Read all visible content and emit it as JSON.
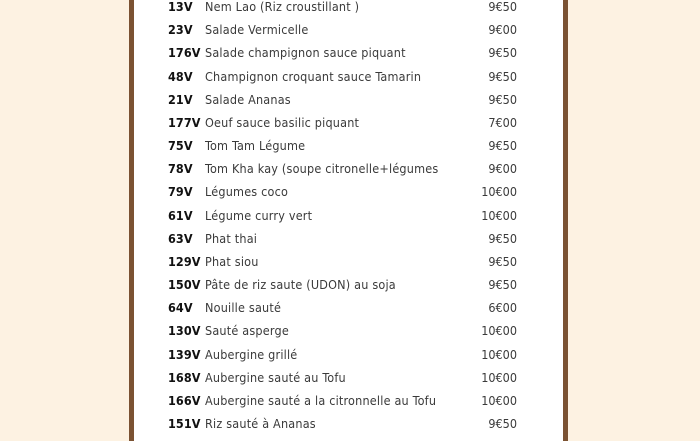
{
  "colors": {
    "background": "#fdf2e2",
    "border": "#7b5232",
    "panel": "#ffffff"
  },
  "menu": {
    "items": [
      {
        "code": "13V",
        "name": "Nem Lao (Riz croustillant )",
        "price": "9€50"
      },
      {
        "code": "23V",
        "name": "Salade  Vermicelle",
        "price": "9€00"
      },
      {
        "code": "176V",
        "name": "Salade champignon sauce piquant",
        "price": "9€50"
      },
      {
        "code": "48V",
        "name": "Champignon croquant sauce Tamarin",
        "price": "9€50"
      },
      {
        "code": "21V",
        "name": "Salade Ananas",
        "price": "9€50"
      },
      {
        "code": "177V",
        "name": "Oeuf sauce basilic piquant",
        "price": "7€00"
      },
      {
        "code": "75V",
        "name": "Tom Tam Légume",
        "price": "9€50"
      },
      {
        "code": "78V",
        "name": "Tom Kha kay (soupe citronelle+légumes",
        "price": "9€00"
      },
      {
        "code": "79V",
        "name": "Légumes coco",
        "price": "10€00"
      },
      {
        "code": "61V",
        "name": "Légume curry vert",
        "price": "10€00"
      },
      {
        "code": "63V",
        "name": "Phat thai",
        "price": "9€50"
      },
      {
        "code": "129V",
        "name": "Phat siou",
        "price": "9€50"
      },
      {
        "code": "150V",
        "name": "Pâte de riz saute (UDON) au soja",
        "price": "9€50"
      },
      {
        "code": "64V",
        "name": "Nouille sauté",
        "price": "6€00"
      },
      {
        "code": "130V",
        "name": "Sauté asperge",
        "price": "10€00"
      },
      {
        "code": "139V",
        "name": "Aubergine grillé",
        "price": "10€00"
      },
      {
        "code": "168V",
        "name": "Aubergine sauté au Tofu",
        "price": "10€00"
      },
      {
        "code": "166V",
        "name": "Aubergine sauté a la citronnelle au Tofu",
        "price": "10€00"
      },
      {
        "code": "151V",
        "name": "Riz sauté à Ananas",
        "price": "9€50"
      }
    ]
  }
}
